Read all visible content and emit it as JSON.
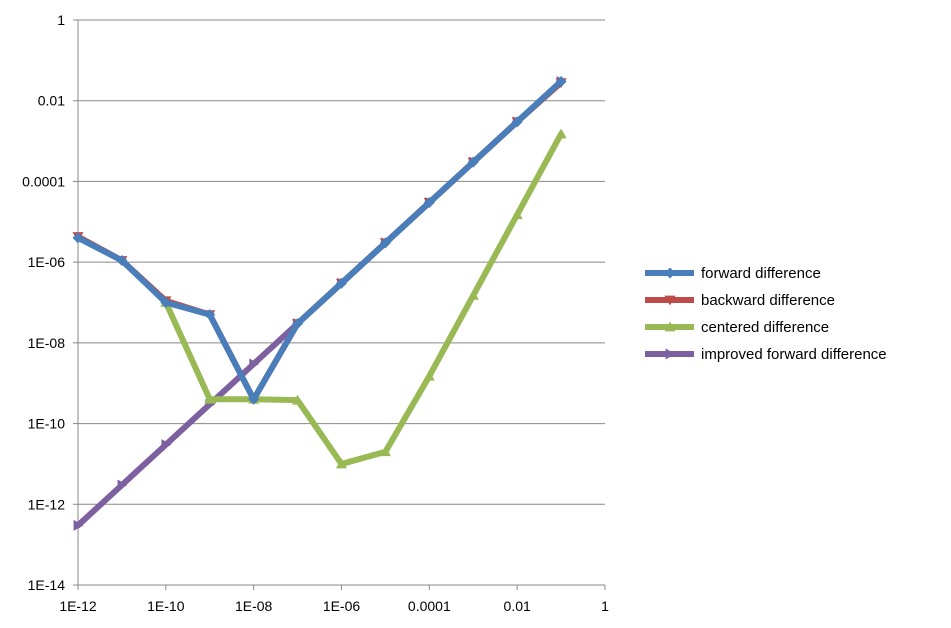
{
  "chart_data": {
    "type": "line",
    "title": "",
    "xlabel": "",
    "ylabel": "",
    "x_scale": "log",
    "y_scale": "log",
    "xlim": [
      1e-12,
      1
    ],
    "ylim": [
      1e-14,
      1
    ],
    "x_tick_labels": [
      "1E-12",
      "1E-10",
      "1E-08",
      "1E-06",
      "0.0001",
      "0.01",
      "1"
    ],
    "y_tick_labels": [
      "1E-14",
      "1E-12",
      "1E-10",
      "1E-08",
      "1E-06",
      "0.0001",
      "0.01",
      "1"
    ],
    "grid": "horizontal",
    "legend_position": "right",
    "x": [
      1e-12,
      1e-11,
      1e-10,
      1e-09,
      1e-08,
      1e-07,
      1e-06,
      1e-05,
      0.0001,
      0.001,
      0.01,
      0.1
    ],
    "series": [
      {
        "name": "forward difference",
        "color": "#4a7ebb",
        "marker": "diamond",
        "values": [
          4e-06,
          1.1e-06,
          1e-07,
          5e-08,
          4e-10,
          3e-08,
          3e-07,
          3e-06,
          3e-05,
          0.0003,
          0.003,
          0.03
        ]
      },
      {
        "name": "backward difference",
        "color": "#be4b48",
        "marker": "triangle-down",
        "values": [
          4.3e-06,
          1.1e-06,
          1.1e-07,
          5e-08,
          4e-10,
          3e-08,
          3e-07,
          3e-06,
          3e-05,
          0.0003,
          0.003,
          0.028
        ]
      },
      {
        "name": "centered difference",
        "color": "#98b954",
        "marker": "triangle-up",
        "values": [
          null,
          null,
          1e-07,
          4e-10,
          4e-10,
          3.8e-10,
          1e-11,
          2e-11,
          1.5e-09,
          1.5e-07,
          1.5e-05,
          0.0015
        ]
      },
      {
        "name": "improved forward difference",
        "color": "#7d60a0",
        "marker": "triangle-right",
        "values": [
          3e-13,
          3e-12,
          3e-11,
          3e-10,
          3e-09,
          3e-08,
          3e-07,
          3e-06,
          3e-05,
          0.0003,
          0.003,
          0.03
        ]
      }
    ]
  }
}
